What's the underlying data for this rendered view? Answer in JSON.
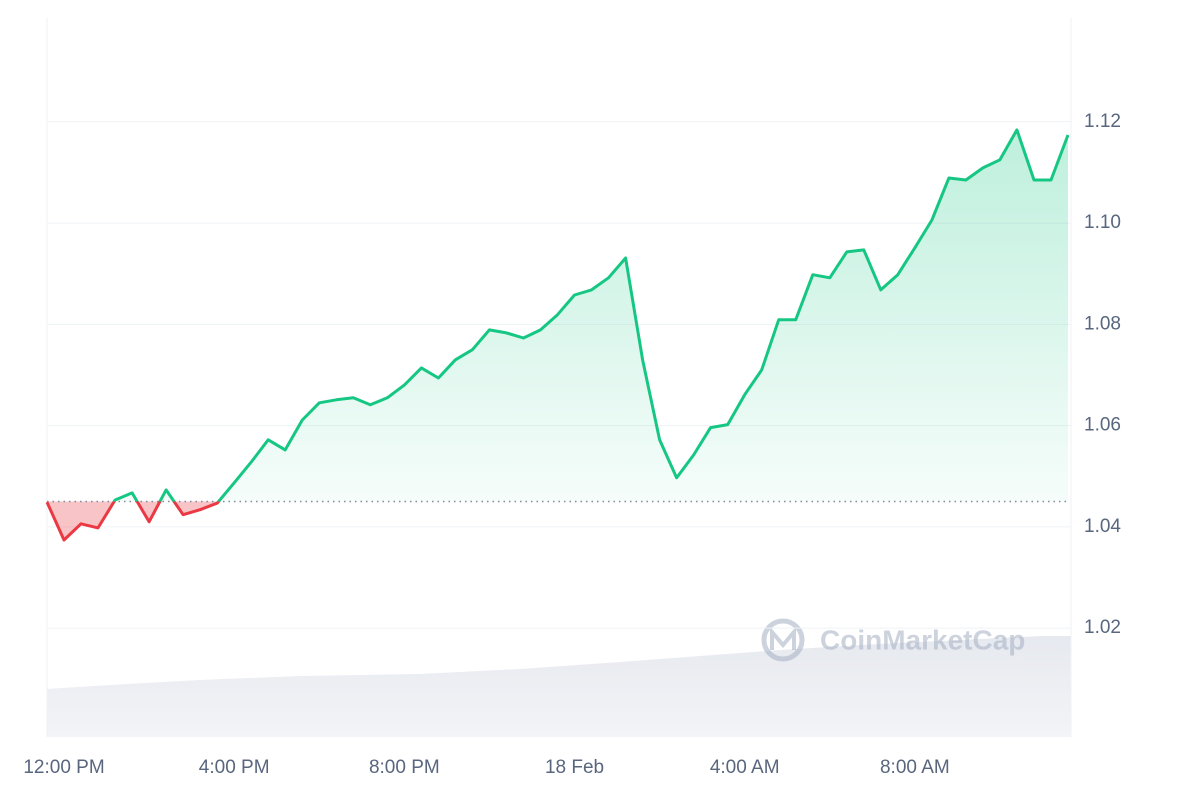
{
  "chart_data": {
    "type": "line",
    "categories": [
      null,
      "12:00 PM",
      null,
      null,
      null,
      null,
      null,
      null,
      null,
      null,
      null,
      "4:00 PM",
      null,
      null,
      null,
      null,
      null,
      null,
      null,
      null,
      null,
      "8:00 PM",
      null,
      null,
      null,
      null,
      null,
      null,
      null,
      null,
      null,
      "18 Feb",
      null,
      null,
      null,
      null,
      null,
      null,
      null,
      null,
      null,
      "4:00 AM",
      null,
      null,
      null,
      null,
      null,
      null,
      null,
      null,
      null,
      "8:00 AM",
      null,
      null,
      null,
      null,
      null,
      null,
      null,
      null,
      null
    ],
    "values": [
      1.0449,
      1.0374,
      1.0406,
      1.0398,
      1.0453,
      1.0467,
      1.041,
      1.0473,
      1.0424,
      1.0434,
      1.0447,
      1.0487,
      1.0528,
      1.0572,
      1.0552,
      1.0611,
      1.0645,
      1.0651,
      1.0655,
      1.0641,
      1.0655,
      1.068,
      1.0714,
      1.0694,
      1.073,
      1.075,
      1.0789,
      1.0783,
      1.0773,
      1.0789,
      1.0819,
      1.0858,
      1.0868,
      1.0892,
      1.0931,
      1.073,
      1.0572,
      1.0497,
      1.0542,
      1.0596,
      1.0602,
      1.0661,
      1.071,
      1.0809,
      1.0809,
      1.0898,
      1.0892,
      1.0943,
      1.0947,
      1.0868,
      1.0898,
      1.0951,
      1.1006,
      1.1089,
      1.1085,
      1.1109,
      1.1125,
      1.1184,
      1.1085,
      1.1085,
      1.1174
    ],
    "baseline": 1.045,
    "color": "#16c784",
    "down_color": "#ea3943",
    "ylim": [
      0.9985,
      1.1405
    ],
    "yticks": [
      1.02,
      1.04,
      1.06,
      1.08,
      {
        "value": 1.1,
        "label": "1.10"
      },
      1.12
    ],
    "grid": true,
    "watermark": "CoinMarketCap"
  }
}
